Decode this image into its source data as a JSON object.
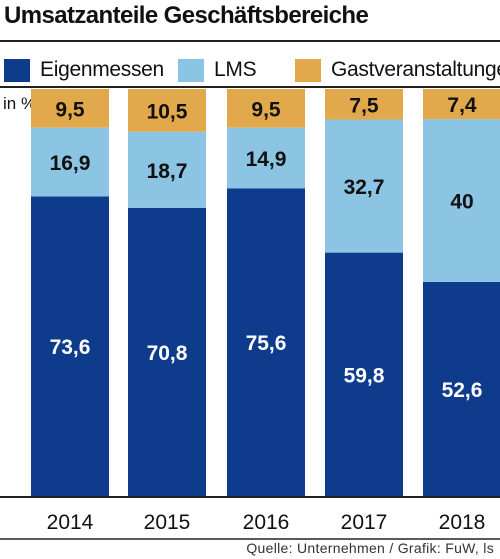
{
  "title": "Umsatzanteile Geschäftsbereiche",
  "unit_label": "in %",
  "source": "Quelle: Unternehmen / Grafik: FuW, ls",
  "colors": {
    "Eigenmessen": "#0f3b8c",
    "LMS": "#8cc4e4",
    "Gastveranstaltungen": "#e2a94c",
    "dark_text": "#111111",
    "light_text": "#ffffff"
  },
  "chart_data": {
    "type": "bar",
    "stacked": true,
    "categories": [
      "2014",
      "2015",
      "2016",
      "2017",
      "2018"
    ],
    "series": [
      {
        "name": "Eigenmessen",
        "values": [
          73.6,
          70.8,
          75.6,
          59.8,
          52.6
        ],
        "labels": [
          "73,6",
          "70,8",
          "75,6",
          "59,8",
          "52,6"
        ]
      },
      {
        "name": "LMS",
        "values": [
          16.9,
          18.7,
          14.9,
          32.7,
          40
        ],
        "labels": [
          "16,9",
          "18,7",
          "14,9",
          "32,7",
          "40"
        ]
      },
      {
        "name": "Gastveranstaltungen",
        "values": [
          9.5,
          10.5,
          9.5,
          7.5,
          7.4
        ],
        "labels": [
          "9,5",
          "10,5",
          "9,5",
          "7,5",
          "7,4"
        ]
      }
    ],
    "ylabel": "in %",
    "ylim": [
      0,
      100
    ],
    "legend_position": "top",
    "grid": false
  }
}
